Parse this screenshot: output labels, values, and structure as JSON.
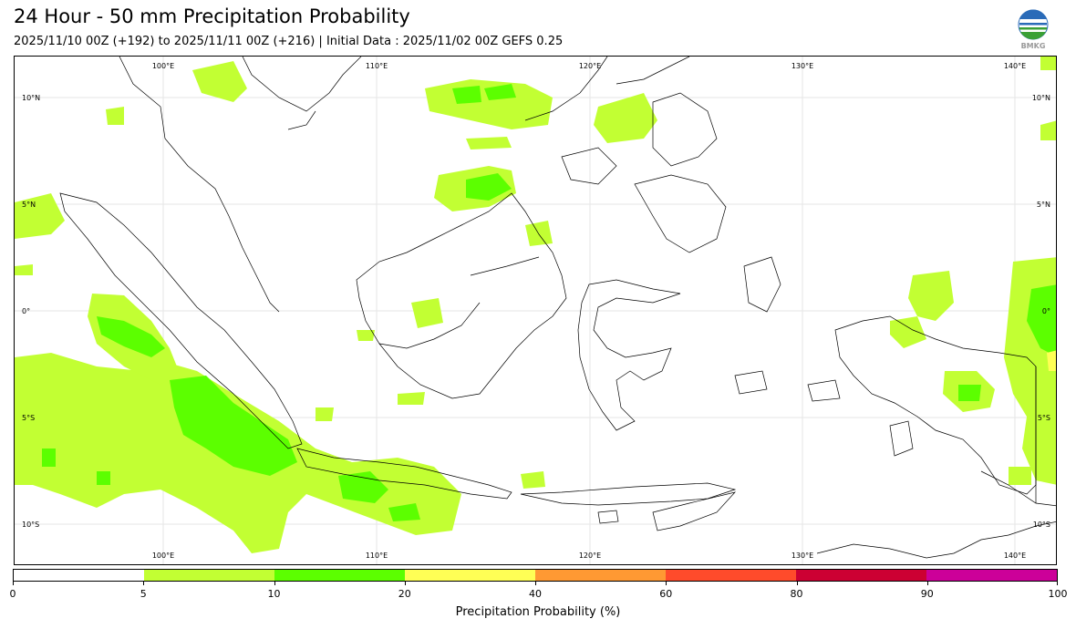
{
  "header": {
    "title": "24 Hour - 50 mm Precipitation Probability",
    "subtitle": "2025/11/10 00Z (+192) to 2025/11/11 00Z (+216) | Initial Data : 2025/11/02 00Z GEFS 0.25",
    "logo_text": "BMKG"
  },
  "map": {
    "lon_labels": [
      "100°E",
      "110°E",
      "120°E",
      "130°E",
      "140°E"
    ],
    "lat_labels": [
      "10°N",
      "5°N",
      "0°",
      "5°S",
      "10°S"
    ],
    "region": "Indonesia"
  },
  "legend": {
    "title": "Precipitation Probability (%)",
    "ticks": [
      "0",
      "5",
      "10",
      "20",
      "40",
      "60",
      "80",
      "90",
      "100"
    ],
    "colors": [
      "#ffffff",
      "#c2ff33",
      "#5cff00",
      "#ffff55",
      "#ff9933",
      "#ff4b2b",
      "#cc0033",
      "#cc0099"
    ],
    "light_green": "#c2ff33",
    "dark_green": "#5cff00",
    "yellow": "#ffff55"
  }
}
